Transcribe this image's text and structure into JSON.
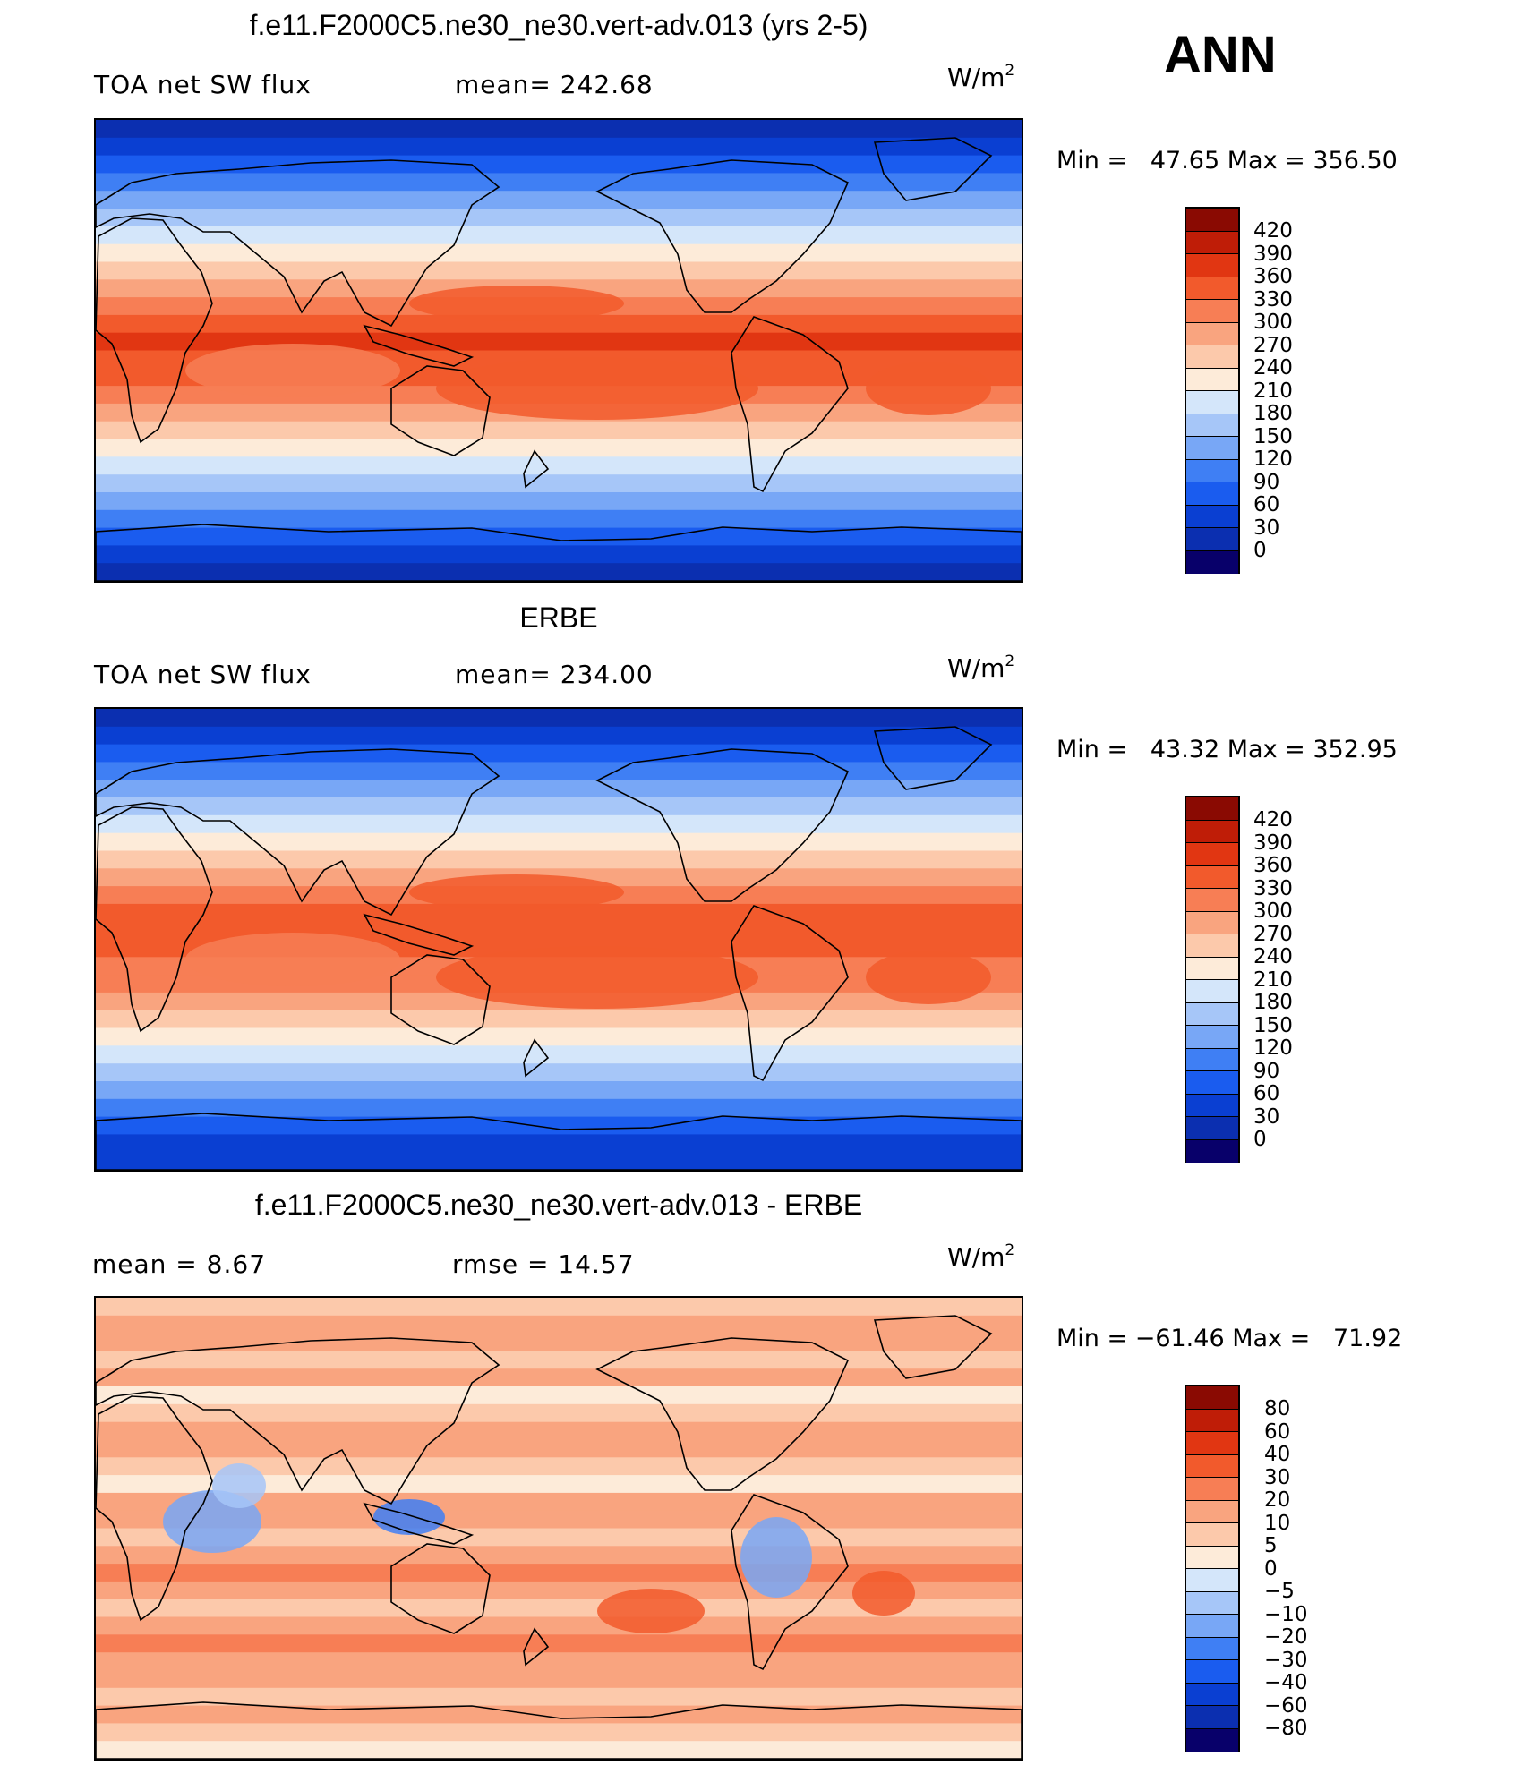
{
  "season": "ANN",
  "palette": {
    "temp": [
      "#08006a",
      "#0b2fb0",
      "#0a3fd2",
      "#1a5cef",
      "#3f7ff4",
      "#78a7f6",
      "#a6c6f8",
      "#d4e6fa",
      "#fdebd9",
      "#fcc9ab",
      "#f9a47f",
      "#f77e55",
      "#f25a2c",
      "#e13612",
      "#bf1d07",
      "#8a0a02"
    ],
    "diff": [
      "#08006a",
      "#0b2fb0",
      "#0a3fd2",
      "#1a5cef",
      "#3f7ff4",
      "#78a7f6",
      "#a6c6f8",
      "#d4e6fa",
      "#fdebd9",
      "#fcc9ab",
      "#f9a47f",
      "#f77e55",
      "#f25a2c",
      "#e13612",
      "#bf1d07",
      "#8a0a02"
    ]
  },
  "panels": [
    {
      "title": "f.e11.F2000C5.ne30_ne30.vert-adv.013 (yrs 2-5)",
      "left_label": "TOA net SW flux",
      "stat_label": "mean= 242.68",
      "units": "W/m",
      "units_exp": "2",
      "min_max": "Min =   47.65 Max = 356.50",
      "colorbar_ticks": [
        "420",
        "390",
        "360",
        "330",
        "300",
        "270",
        "240",
        "210",
        "180",
        "150",
        "120",
        "90",
        "60",
        "30",
        "0"
      ],
      "field": "model"
    },
    {
      "title": "ERBE",
      "left_label": "TOA net SW flux",
      "stat_label": "mean= 234.00",
      "units": "W/m",
      "units_exp": "2",
      "min_max": "Min =   43.32 Max = 352.95",
      "colorbar_ticks": [
        "420",
        "390",
        "360",
        "330",
        "300",
        "270",
        "240",
        "210",
        "180",
        "150",
        "120",
        "90",
        "60",
        "30",
        "0"
      ],
      "field": "obs"
    },
    {
      "title": "f.e11.F2000C5.ne30_ne30.vert-adv.013 - ERBE",
      "left_label": "mean =     8.67",
      "stat_label": "rmse =    14.57",
      "units": "W/m",
      "units_exp": "2",
      "min_max": "Min = −61.46 Max =   71.92",
      "colorbar_ticks": [
        "80",
        "60",
        "40",
        "30",
        "20",
        "10",
        "5",
        "0",
        "−5",
        "−10",
        "−20",
        "−30",
        "−40",
        "−60",
        "−80"
      ],
      "field": "diff"
    }
  ]
}
